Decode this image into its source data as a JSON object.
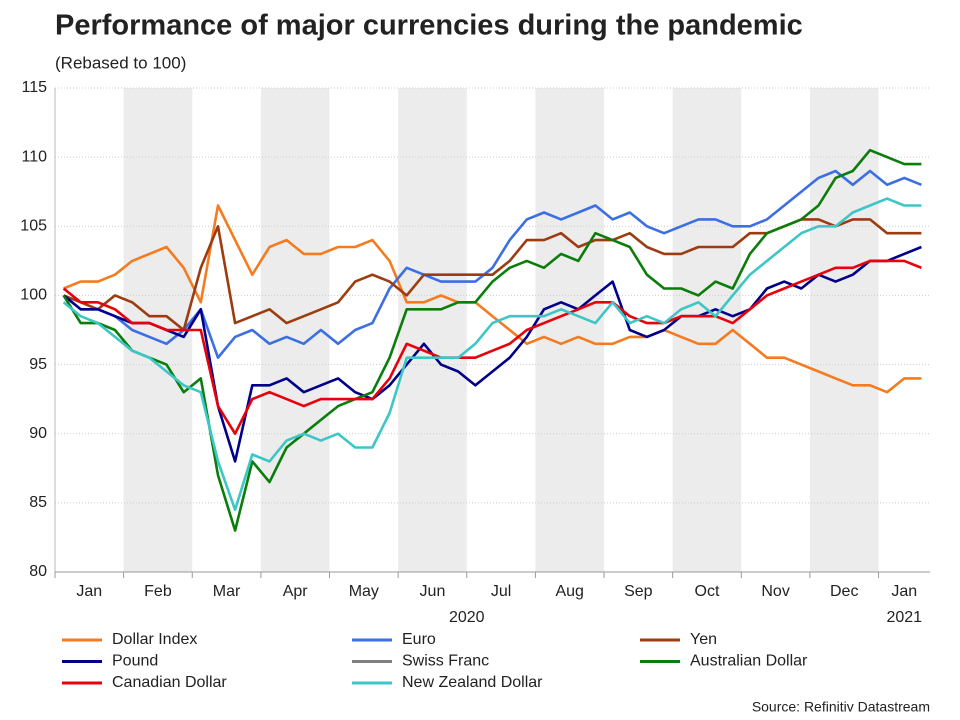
{
  "chart_data": {
    "type": "line",
    "title": "Performance of major currencies during the pandemic",
    "subtitle": "(Rebased to 100)",
    "source": "Source: Refinitiv Datastream",
    "categories": [
      "Jan",
      null,
      null,
      null,
      "Feb",
      null,
      null,
      null,
      "Mar",
      null,
      null,
      null,
      "Apr",
      null,
      null,
      null,
      "May",
      null,
      null,
      null,
      "Jun",
      null,
      null,
      null,
      "Jul",
      null,
      null,
      null,
      "Aug",
      null,
      null,
      null,
      "Sep",
      null,
      null,
      null,
      "Oct",
      null,
      null,
      null,
      "Nov",
      null,
      null,
      null,
      "Dec",
      null,
      null,
      null,
      "Jan",
      null,
      null
    ],
    "year_labels": [
      "2020",
      "2021"
    ],
    "shade_alternate_months": true,
    "ylim": [
      80,
      115
    ],
    "yticks": [
      80,
      85,
      90,
      95,
      100,
      105,
      110,
      115
    ],
    "grid": true,
    "series": [
      {
        "name": "Dollar Index",
        "color": "#f47b20",
        "values": [
          100.5,
          101,
          101,
          101.5,
          102.5,
          103,
          103.5,
          102,
          99.5,
          106.5,
          104,
          101.5,
          103.5,
          104,
          103,
          103,
          103.5,
          103.5,
          104,
          102.5,
          99.5,
          99.5,
          100,
          99.5,
          99.5,
          98.5,
          97.5,
          96.5,
          97,
          96.5,
          97,
          96.5,
          96.5,
          97,
          97,
          97.5,
          97,
          96.5,
          96.5,
          97.5,
          96.5,
          95.5,
          95.5,
          95,
          94.5,
          94,
          93.5,
          93.5,
          93,
          94,
          94
        ]
      },
      {
        "name": "Euro",
        "color": "#3b6fe3",
        "values": [
          100,
          99,
          99,
          98.5,
          97.5,
          97,
          96.5,
          97.5,
          99,
          95.5,
          97,
          97.5,
          96.5,
          97,
          96.5,
          97.5,
          96.5,
          97.5,
          98,
          100.5,
          102,
          101.5,
          101,
          101,
          101,
          102,
          104,
          105.5,
          106,
          105.5,
          106,
          106.5,
          105.5,
          106,
          105,
          104.5,
          105,
          105.5,
          105.5,
          105,
          105,
          105.5,
          106.5,
          107.5,
          108.5,
          109,
          108,
          109,
          108,
          108.5,
          108
        ]
      },
      {
        "name": "Yen",
        "color": "#9c3c10",
        "values": [
          100,
          99.5,
          99,
          100,
          99.5,
          98.5,
          98.5,
          97.5,
          102,
          105,
          98,
          98.5,
          99,
          98,
          98.5,
          99,
          99.5,
          101,
          101.5,
          101,
          100,
          101.5,
          101.5,
          101.5,
          101.5,
          101.5,
          102.5,
          104,
          104,
          104.5,
          103.5,
          104,
          104,
          104.5,
          103.5,
          103,
          103,
          103.5,
          103.5,
          103.5,
          104.5,
          104.5,
          105,
          105.5,
          105.5,
          105,
          105.5,
          105.5,
          104.5,
          104.5,
          104.5
        ]
      },
      {
        "name": "Pound",
        "color": "#00008b",
        "values": [
          100,
          99,
          99,
          98.5,
          98,
          98,
          97.5,
          97,
          99,
          92,
          88,
          93.5,
          93.5,
          94,
          93,
          93.5,
          94,
          93,
          92.5,
          93.5,
          95,
          96.5,
          95,
          94.5,
          93.5,
          94.5,
          95.5,
          97,
          99,
          99.5,
          99,
          100,
          101,
          97.5,
          97,
          97.5,
          98.5,
          98.5,
          99,
          98.5,
          99,
          100.5,
          101,
          100.5,
          101.5,
          101,
          101.5,
          102.5,
          102.5,
          103,
          103.5
        ]
      },
      {
        "name": "Swiss Franc",
        "color": "#808080",
        "values": [
          null,
          null,
          null,
          null,
          null,
          null,
          null,
          null,
          null,
          null,
          null,
          null,
          null,
          null,
          null,
          null,
          null,
          null,
          null,
          null,
          null,
          null,
          null,
          null,
          null,
          null,
          null,
          null,
          null,
          null,
          null,
          null,
          null,
          null,
          null,
          null,
          null,
          null,
          null,
          null,
          null,
          null,
          null,
          null,
          null,
          null,
          null,
          null,
          null,
          null,
          null
        ]
      },
      {
        "name": "Australian Dollar",
        "color": "#0a7d0a",
        "values": [
          100,
          98,
          98,
          97.5,
          96,
          95.5,
          95,
          93,
          94,
          87,
          83,
          88,
          86.5,
          89,
          90,
          91,
          92,
          92.5,
          93,
          95.5,
          99,
          99,
          99,
          99.5,
          99.5,
          101,
          102,
          102.5,
          102,
          103,
          102.5,
          104.5,
          104,
          103.5,
          101.5,
          100.5,
          100.5,
          100,
          101,
          100.5,
          103,
          104.5,
          105,
          105.5,
          106.5,
          108.5,
          109,
          110.5,
          110,
          109.5,
          109.5
        ]
      },
      {
        "name": "Canadian Dollar",
        "color": "#e8000b",
        "values": [
          100.5,
          99.5,
          99.5,
          99,
          98,
          98,
          97.5,
          97.5,
          97.5,
          92,
          90,
          92.5,
          93,
          92.5,
          92,
          92.5,
          92.5,
          92.5,
          92.5,
          94,
          96.5,
          96,
          95.5,
          95.5,
          95.5,
          96,
          96.5,
          97.5,
          98,
          98.5,
          99,
          99.5,
          99.5,
          98.5,
          98,
          98,
          98.5,
          98.5,
          98.5,
          98,
          99,
          100,
          100.5,
          101,
          101.5,
          102,
          102,
          102.5,
          102.5,
          102.5,
          102
        ]
      },
      {
        "name": "New Zealand Dollar",
        "color": "#3cc6c6",
        "values": [
          99.5,
          98.5,
          98,
          97,
          96,
          95.5,
          94.5,
          93.5,
          93,
          88,
          84.5,
          88.5,
          88,
          89.5,
          90,
          89.5,
          90,
          89,
          89,
          91.5,
          95.5,
          95.5,
          95.5,
          95.5,
          96.5,
          98,
          98.5,
          98.5,
          98.5,
          99,
          98.5,
          98,
          99.5,
          98,
          98.5,
          98,
          99,
          99.5,
          98.5,
          100,
          101.5,
          102.5,
          103.5,
          104.5,
          105,
          105,
          106,
          106.5,
          107,
          106.5,
          106.5
        ]
      }
    ]
  }
}
